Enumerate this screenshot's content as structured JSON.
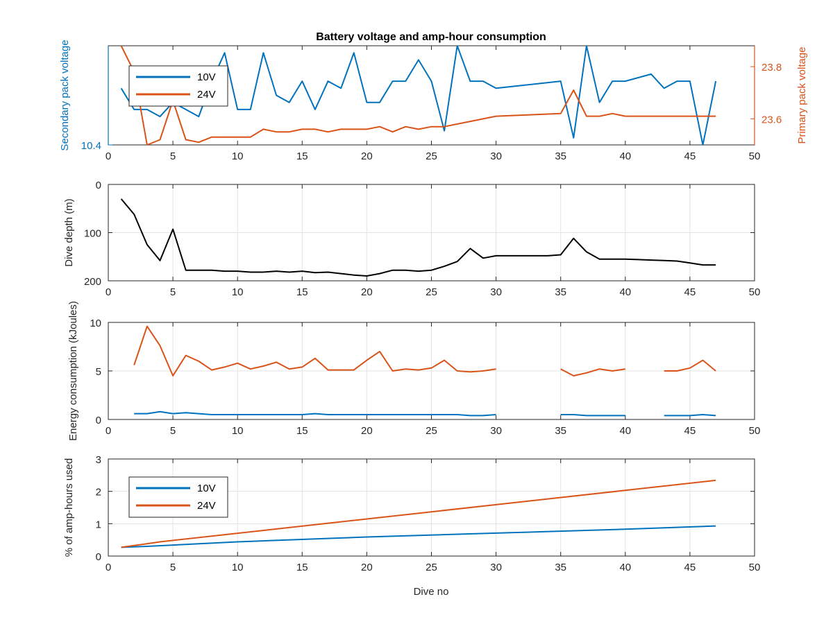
{
  "figure": {
    "title": "Battery voltage and amp-hour consumption",
    "xlabel": "Dive no"
  },
  "colors": {
    "s10": "#0072bd",
    "s24": "#d95319",
    "depth": "#000000",
    "axis": "#262626",
    "grid": "#e3e3e3"
  },
  "chart_data": [
    {
      "type": "line",
      "title": "Battery voltage and amp-hour consumption",
      "xlabel": "",
      "xlim": [
        0,
        50
      ],
      "xticks": [
        0,
        5,
        10,
        15,
        20,
        25,
        30,
        35,
        40,
        45,
        50
      ],
      "grid": false,
      "legend": "top-left",
      "yaxes": {
        "left": {
          "label": "Secondary pack voltage",
          "ylim": [
            10.4,
            10.54
          ],
          "ticks": [
            10.4
          ],
          "tick_labels": [
            "10.4"
          ]
        },
        "right": {
          "label": "Primary pack voltage",
          "ylim": [
            23.5,
            23.88
          ],
          "ticks": [
            23.6,
            23.8
          ],
          "tick_labels": [
            "23.6",
            "23.8"
          ]
        }
      },
      "series": [
        {
          "name": "10V",
          "axis": "left",
          "x": [
            1,
            2,
            3,
            4,
            5,
            6,
            7,
            8,
            9,
            10,
            11,
            12,
            13,
            14,
            15,
            16,
            17,
            18,
            19,
            20,
            21,
            22,
            23,
            24,
            25,
            26,
            27,
            28,
            29,
            30,
            35,
            36,
            37,
            38,
            39,
            40,
            42,
            43,
            44,
            45,
            46,
            47
          ],
          "y": [
            10.48,
            10.45,
            10.45,
            10.44,
            10.46,
            10.45,
            10.44,
            10.49,
            10.53,
            10.45,
            10.45,
            10.53,
            10.47,
            10.46,
            10.49,
            10.45,
            10.49,
            10.48,
            10.53,
            10.46,
            10.46,
            10.49,
            10.49,
            10.52,
            10.49,
            10.42,
            10.54,
            10.49,
            10.49,
            10.48,
            10.49,
            10.41,
            10.54,
            10.46,
            10.49,
            10.49,
            10.5,
            10.48,
            10.49,
            10.49,
            10.4,
            10.49
          ]
        },
        {
          "name": "24V",
          "axis": "right",
          "x": [
            1,
            2,
            3,
            4,
            5,
            6,
            7,
            8,
            9,
            10,
            11,
            12,
            13,
            14,
            15,
            16,
            17,
            18,
            19,
            20,
            21,
            22,
            23,
            24,
            25,
            26,
            27,
            28,
            29,
            30,
            35,
            36,
            37,
            38,
            39,
            40,
            42,
            43,
            44,
            45,
            46,
            47
          ],
          "y": [
            23.88,
            23.78,
            23.5,
            23.52,
            23.67,
            23.52,
            23.51,
            23.53,
            23.53,
            23.53,
            23.53,
            23.56,
            23.55,
            23.55,
            23.56,
            23.56,
            23.55,
            23.56,
            23.56,
            23.56,
            23.57,
            23.55,
            23.57,
            23.56,
            23.57,
            23.57,
            23.58,
            23.59,
            23.6,
            23.61,
            23.62,
            23.71,
            23.61,
            23.61,
            23.62,
            23.61,
            23.61,
            23.61,
            23.61,
            23.61,
            23.61,
            23.61
          ]
        }
      ]
    },
    {
      "type": "line",
      "xlabel": "",
      "ylabel": "Dive depth (m)",
      "xlim": [
        0,
        50
      ],
      "ylim": [
        0,
        200
      ],
      "y_reversed": true,
      "xticks": [
        0,
        5,
        10,
        15,
        20,
        25,
        30,
        35,
        40,
        45,
        50
      ],
      "yticks": [
        0,
        100,
        200
      ],
      "grid": true,
      "series": [
        {
          "name": "",
          "x": [
            1,
            2,
            3,
            4,
            5,
            6,
            7,
            8,
            9,
            10,
            11,
            12,
            13,
            14,
            15,
            16,
            17,
            18,
            19,
            20,
            21,
            22,
            23,
            24,
            25,
            26,
            27,
            28,
            29,
            30,
            31,
            32,
            33,
            34,
            35,
            36,
            37,
            38,
            39,
            40,
            41,
            42,
            43,
            44,
            45,
            46,
            47
          ],
          "y": [
            30,
            62,
            125,
            158,
            93,
            178,
            178,
            178,
            180,
            180,
            182,
            182,
            180,
            182,
            180,
            183,
            182,
            185,
            188,
            190,
            185,
            178,
            178,
            180,
            178,
            170,
            160,
            133,
            153,
            148,
            148,
            148,
            148,
            148,
            146,
            112,
            140,
            155,
            155,
            155,
            156,
            157,
            158,
            159,
            163,
            167,
            167
          ]
        }
      ]
    },
    {
      "type": "line",
      "xlabel": "",
      "ylabel": "Energy consumption (kJoules)",
      "xlim": [
        0,
        50
      ],
      "ylim": [
        0,
        10
      ],
      "xticks": [
        0,
        5,
        10,
        15,
        20,
        25,
        30,
        35,
        40,
        45,
        50
      ],
      "yticks": [
        0,
        5,
        10
      ],
      "grid": true,
      "series": [
        {
          "name": "24V",
          "x": [
            2,
            3,
            4,
            5,
            6,
            7,
            8,
            9,
            10,
            11,
            12,
            13,
            14,
            15,
            16,
            17,
            18,
            19,
            20,
            21,
            22,
            23,
            24,
            25,
            26,
            27,
            28,
            29,
            30,
            null,
            35,
            36,
            37,
            38,
            39,
            40,
            null,
            43,
            44,
            45,
            46,
            47
          ],
          "y": [
            5.6,
            9.6,
            7.6,
            4.5,
            6.6,
            6.0,
            5.1,
            5.4,
            5.8,
            5.2,
            5.5,
            5.9,
            5.2,
            5.4,
            6.3,
            5.1,
            5.1,
            5.1,
            6.1,
            7.0,
            5.0,
            5.2,
            5.1,
            5.3,
            6.1,
            5.0,
            4.9,
            5.0,
            5.2,
            null,
            5.2,
            4.5,
            4.8,
            5.2,
            5.0,
            5.2,
            null,
            5.0,
            5.0,
            5.3,
            6.1,
            5.0
          ]
        },
        {
          "name": "10V",
          "x": [
            2,
            3,
            4,
            5,
            6,
            7,
            8,
            9,
            10,
            11,
            12,
            13,
            14,
            15,
            16,
            17,
            18,
            19,
            20,
            21,
            22,
            23,
            24,
            25,
            26,
            27,
            28,
            29,
            30,
            null,
            35,
            36,
            37,
            38,
            39,
            40,
            null,
            43,
            44,
            45,
            46,
            47
          ],
          "y": [
            0.6,
            0.6,
            0.8,
            0.6,
            0.7,
            0.6,
            0.5,
            0.5,
            0.5,
            0.5,
            0.5,
            0.5,
            0.5,
            0.5,
            0.6,
            0.5,
            0.5,
            0.5,
            0.5,
            0.5,
            0.5,
            0.5,
            0.5,
            0.5,
            0.5,
            0.5,
            0.4,
            0.4,
            0.5,
            null,
            0.5,
            0.5,
            0.4,
            0.4,
            0.4,
            0.4,
            null,
            0.4,
            0.4,
            0.4,
            0.5,
            0.4
          ]
        }
      ]
    },
    {
      "type": "line",
      "xlabel": "Dive no",
      "ylabel": "% of amp-hours used",
      "xlim": [
        0,
        50
      ],
      "ylim": [
        0,
        3
      ],
      "xticks": [
        0,
        5,
        10,
        15,
        20,
        25,
        30,
        35,
        40,
        45,
        50
      ],
      "yticks": [
        0,
        1,
        2,
        3
      ],
      "grid": true,
      "legend": "top-left",
      "series": [
        {
          "name": "10V",
          "x": [
            1,
            3,
            10,
            20,
            30,
            40,
            47
          ],
          "y": [
            0.27,
            0.3,
            0.44,
            0.59,
            0.71,
            0.83,
            0.93
          ]
        },
        {
          "name": "24V",
          "x": [
            1,
            3,
            4,
            47
          ],
          "y": [
            0.27,
            0.38,
            0.44,
            2.34
          ]
        }
      ]
    }
  ]
}
